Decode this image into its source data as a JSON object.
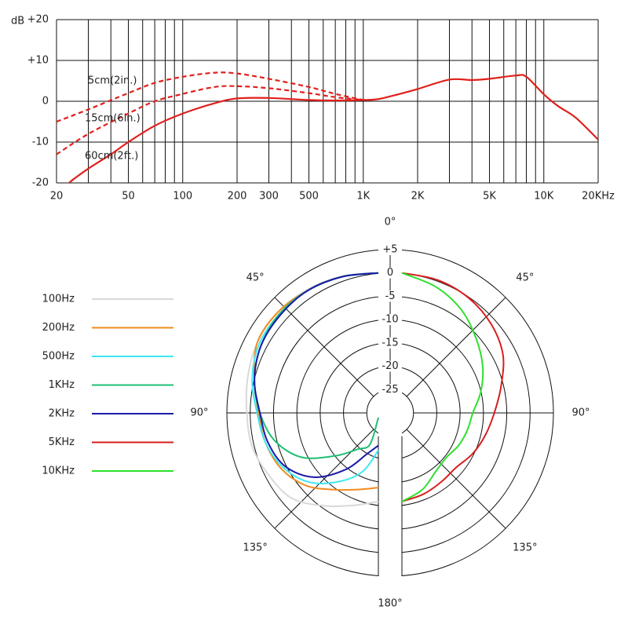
{
  "chart_data": [
    {
      "type": "line",
      "y_label": "dB",
      "xscale": "log",
      "xlim": [
        20,
        20000
      ],
      "ylim": [
        -20,
        20
      ],
      "xticks": [
        20,
        50,
        100,
        200,
        300,
        500,
        {
          "value": 1000,
          "label": "1K"
        },
        {
          "value": 2000,
          "label": "2K"
        },
        {
          "value": 5000,
          "label": "5K"
        },
        {
          "value": 10000,
          "label": "10K"
        },
        {
          "value": 20000,
          "label": "20KHz"
        }
      ],
      "yticks": [
        -20,
        -10,
        0,
        {
          "value": 10,
          "label": "+10"
        },
        {
          "value": 20,
          "label": "+20"
        }
      ],
      "xgrid": [
        20,
        30,
        40,
        50,
        60,
        70,
        80,
        90,
        100,
        200,
        300,
        400,
        500,
        600,
        700,
        800,
        900,
        1000,
        2000,
        3000,
        4000,
        5000,
        6000,
        7000,
        8000,
        9000,
        10000,
        20000
      ],
      "grid": true,
      "series": [
        {
          "name": "60cm(2ft.)",
          "color": "#e0201c",
          "dashed": false,
          "x": [
            23.5,
            25,
            30,
            40,
            50,
            70,
            100,
            150,
            200,
            300,
            500,
            700,
            1000,
            1200,
            1500,
            2000,
            3000,
            4000,
            5000,
            7000,
            8000,
            10000,
            12000,
            15000,
            20000
          ],
          "values": [
            -20,
            -19,
            -16.5,
            -13,
            -10,
            -6,
            -3,
            -0.5,
            0.7,
            0.8,
            0.3,
            0.2,
            0.3,
            0.5,
            1.5,
            3,
            5.3,
            5.2,
            5.5,
            6.3,
            6,
            1.7,
            -1.2,
            -4,
            -9.4
          ]
        },
        {
          "name": "15cm(6in.)",
          "color": "#e0201c",
          "dashed": true,
          "x": [
            20,
            30,
            50,
            70,
            100,
            150,
            200,
            300,
            500,
            700,
            1000
          ],
          "values": [
            -13,
            -8,
            -3,
            0,
            1.8,
            3.5,
            3.7,
            3.2,
            2,
            1,
            0.3
          ]
        },
        {
          "name": "5cm(2in.)",
          "color": "#e0201c",
          "dashed": true,
          "x": [
            20,
            30,
            50,
            70,
            100,
            150,
            200,
            300,
            500,
            700,
            1000
          ],
          "values": [
            -5,
            -2,
            2,
            4.5,
            6,
            7,
            6.8,
            5.5,
            3.5,
            1.8,
            0.3
          ]
        }
      ]
    },
    {
      "type": "polar",
      "theta": [
        0,
        15,
        30,
        45,
        60,
        75,
        90,
        105,
        120,
        135,
        150,
        165,
        180
      ],
      "theta_ticks": [
        {
          "value": 0,
          "label": "0°"
        },
        {
          "value": 45,
          "label": "45°"
        },
        {
          "value": 90,
          "label": "90°"
        },
        {
          "value": 135,
          "label": "135°"
        },
        {
          "value": 180,
          "label": "180°"
        }
      ],
      "rlim": [
        -30,
        5
      ],
      "rticks": [
        {
          "value": 5,
          "label": "+5"
        },
        0,
        -5,
        -10,
        -15,
        -20,
        -25
      ],
      "series": [
        {
          "name": "100Hz",
          "color": "#d9d9d9",
          "side": "left",
          "values": [
            0,
            0.3,
            0.5,
            0.5,
            0,
            -1,
            -1.8,
            -2,
            -3,
            -4,
            -7,
            -9.5,
            -11
          ]
        },
        {
          "name": "200Hz",
          "color": "#f08c1e",
          "side": "left",
          "values": [
            0,
            0.2,
            0.3,
            0.5,
            0,
            -2.5,
            -4.3,
            -5,
            -6,
            -8,
            -11,
            -13,
            -14
          ]
        },
        {
          "name": "500Hz",
          "color": "#3ee8f0",
          "side": "left",
          "values": [
            0,
            0.2,
            0.3,
            0,
            -0.5,
            -2,
            -4,
            -5,
            -6.5,
            -9,
            -13,
            -17,
            -22
          ]
        },
        {
          "name": "1KHz",
          "color": "#1fbf74",
          "side": "left",
          "values": [
            0,
            0.2,
            0.3,
            0,
            -1,
            -2.5,
            -4.6,
            -7,
            -11,
            -17,
            -21,
            -23,
            -29
          ]
        },
        {
          "name": "2KHz",
          "color": "#1a1aa8",
          "side": "left",
          "values": [
            0,
            0.2,
            0.3,
            -0.3,
            -1,
            -2.5,
            -4.6,
            -5.5,
            -7,
            -10.5,
            -16,
            -21,
            -23
          ]
        },
        {
          "name": "5KHz",
          "color": "#d81e1e",
          "side": "right",
          "values": [
            0,
            -0.5,
            -1.5,
            -3,
            -5,
            -8,
            -10.2,
            -11.5,
            -12.5,
            -13.5,
            -13,
            -12,
            -11
          ]
        },
        {
          "name": "10KHz",
          "color": "#2ee02e",
          "side": "right",
          "values": [
            0,
            -2,
            -4.5,
            -7.5,
            -10,
            -12.5,
            -14.8,
            -15.5,
            -16,
            -16.5,
            -15.5,
            -13,
            -11
          ]
        }
      ]
    }
  ]
}
